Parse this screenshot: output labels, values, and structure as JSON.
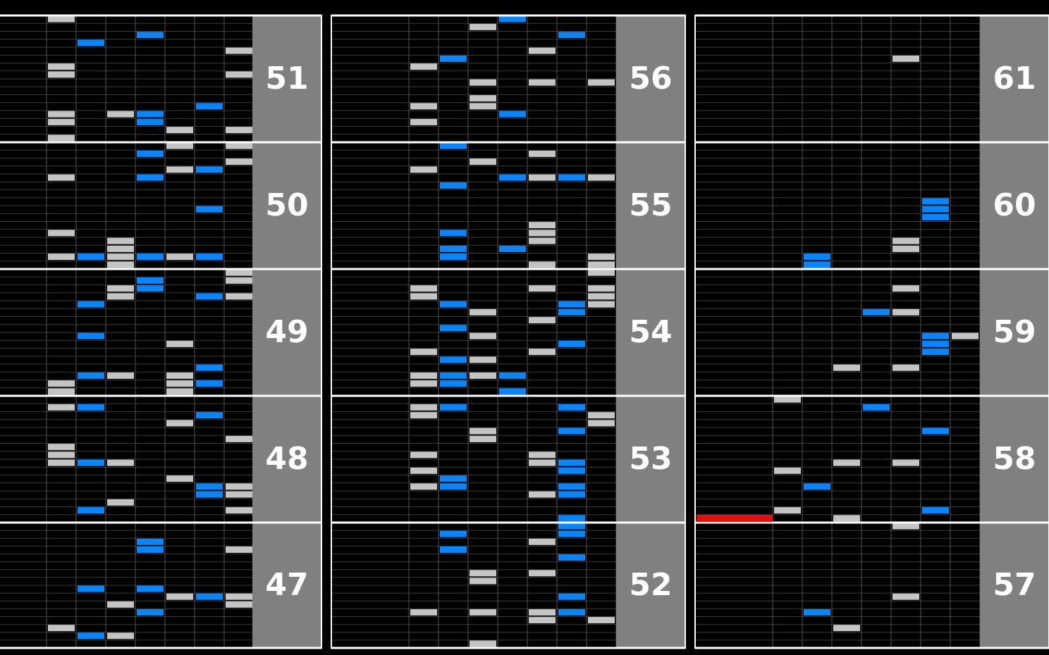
{
  "columns": [
    {
      "measures": [
        "51",
        "50",
        "49",
        "48",
        "47"
      ]
    },
    {
      "measures": [
        "56",
        "55",
        "54",
        "53",
        "52"
      ]
    },
    {
      "measures": [
        "61",
        "60",
        "59",
        "58",
        "57"
      ]
    }
  ]
}
